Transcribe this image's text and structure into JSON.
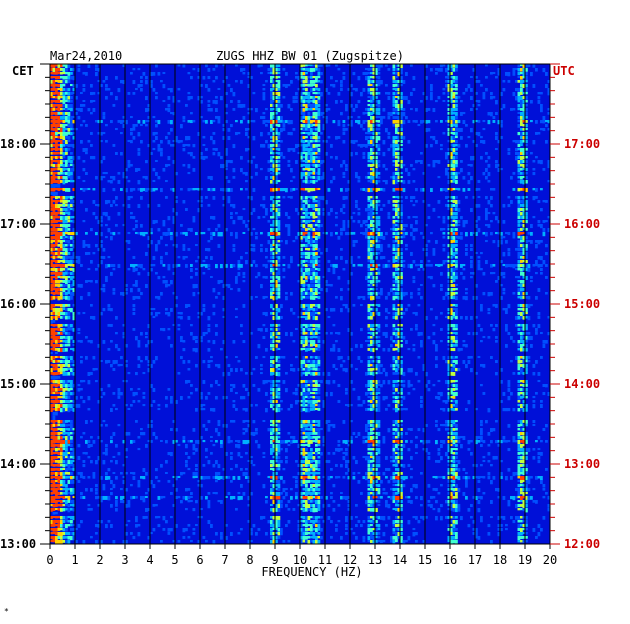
{
  "chart_data": {
    "type": "heatmap",
    "title": "ZUGS HHZ BW 01 (Zugspitze)",
    "date": "Mar24,2010",
    "left_axis_label": "CET",
    "right_axis_label": "UTC",
    "xlabel": "FREQUENCY (HZ)",
    "xlim": [
      0,
      20
    ],
    "x_ticks": [
      "0",
      "1",
      "2",
      "3",
      "4",
      "5",
      "6",
      "7",
      "8",
      "9",
      "10",
      "11",
      "12",
      "13",
      "14",
      "15",
      "16",
      "17",
      "18",
      "19",
      "20"
    ],
    "ylim_cet_hours": [
      13.0,
      19.0
    ],
    "y_ticks_cet": [
      {
        "hour": 18,
        "label": "18:00"
      },
      {
        "hour": 17,
        "label": "17:00"
      },
      {
        "hour": 16,
        "label": "16:00"
      },
      {
        "hour": 15,
        "label": "15:00"
      },
      {
        "hour": 14,
        "label": "14:00"
      },
      {
        "hour": 13,
        "label": "13:00"
      }
    ],
    "y_ticks_utc": [
      {
        "hour": 18,
        "label": "17:00"
      },
      {
        "hour": 17,
        "label": "16:00"
      },
      {
        "hour": 16,
        "label": "15:00"
      },
      {
        "hour": 15,
        "label": "14:00"
      },
      {
        "hour": 14,
        "label": "13:00"
      },
      {
        "hour": 13,
        "label": "12:00"
      }
    ],
    "colorscale": [
      "#0000a0",
      "#0010d8",
      "#0050ff",
      "#00b0ff",
      "#40ffd0",
      "#c0ff40",
      "#ffd000",
      "#ff4000"
    ],
    "dominant_lines_hz": [
      0.2,
      9.0,
      10.2,
      10.6,
      12.9,
      13.9,
      16.1,
      18.9
    ],
    "left_axis_color": "#000000",
    "right_axis_color": "#cc0000"
  },
  "footer_mark": "*"
}
